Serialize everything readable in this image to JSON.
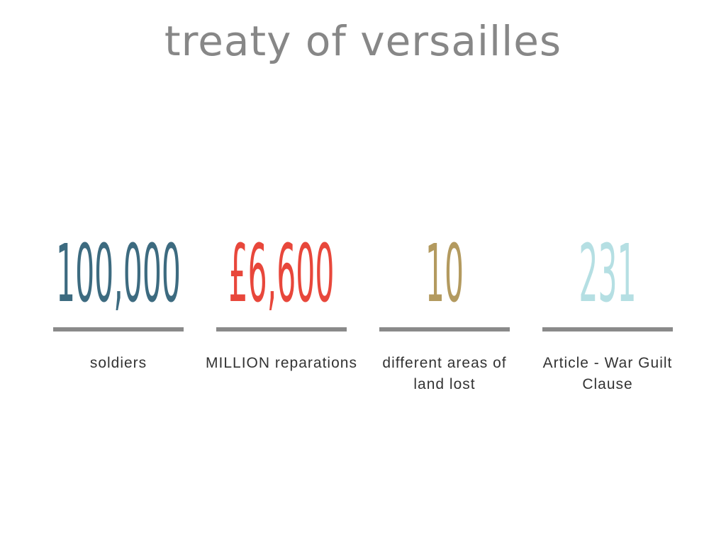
{
  "title": "treaty of versailles",
  "stats": [
    {
      "value": "100,000",
      "label": "soldiers",
      "color": "#3d6b80"
    },
    {
      "value": "£6,600",
      "label": "MILLION reparations",
      "color": "#e8473b"
    },
    {
      "value": "10",
      "label": "different areas of land lost",
      "color": "#b39a5f"
    },
    {
      "value": "231",
      "label": "Article - War Guilt Clause",
      "color": "#b5dfe3"
    }
  ]
}
